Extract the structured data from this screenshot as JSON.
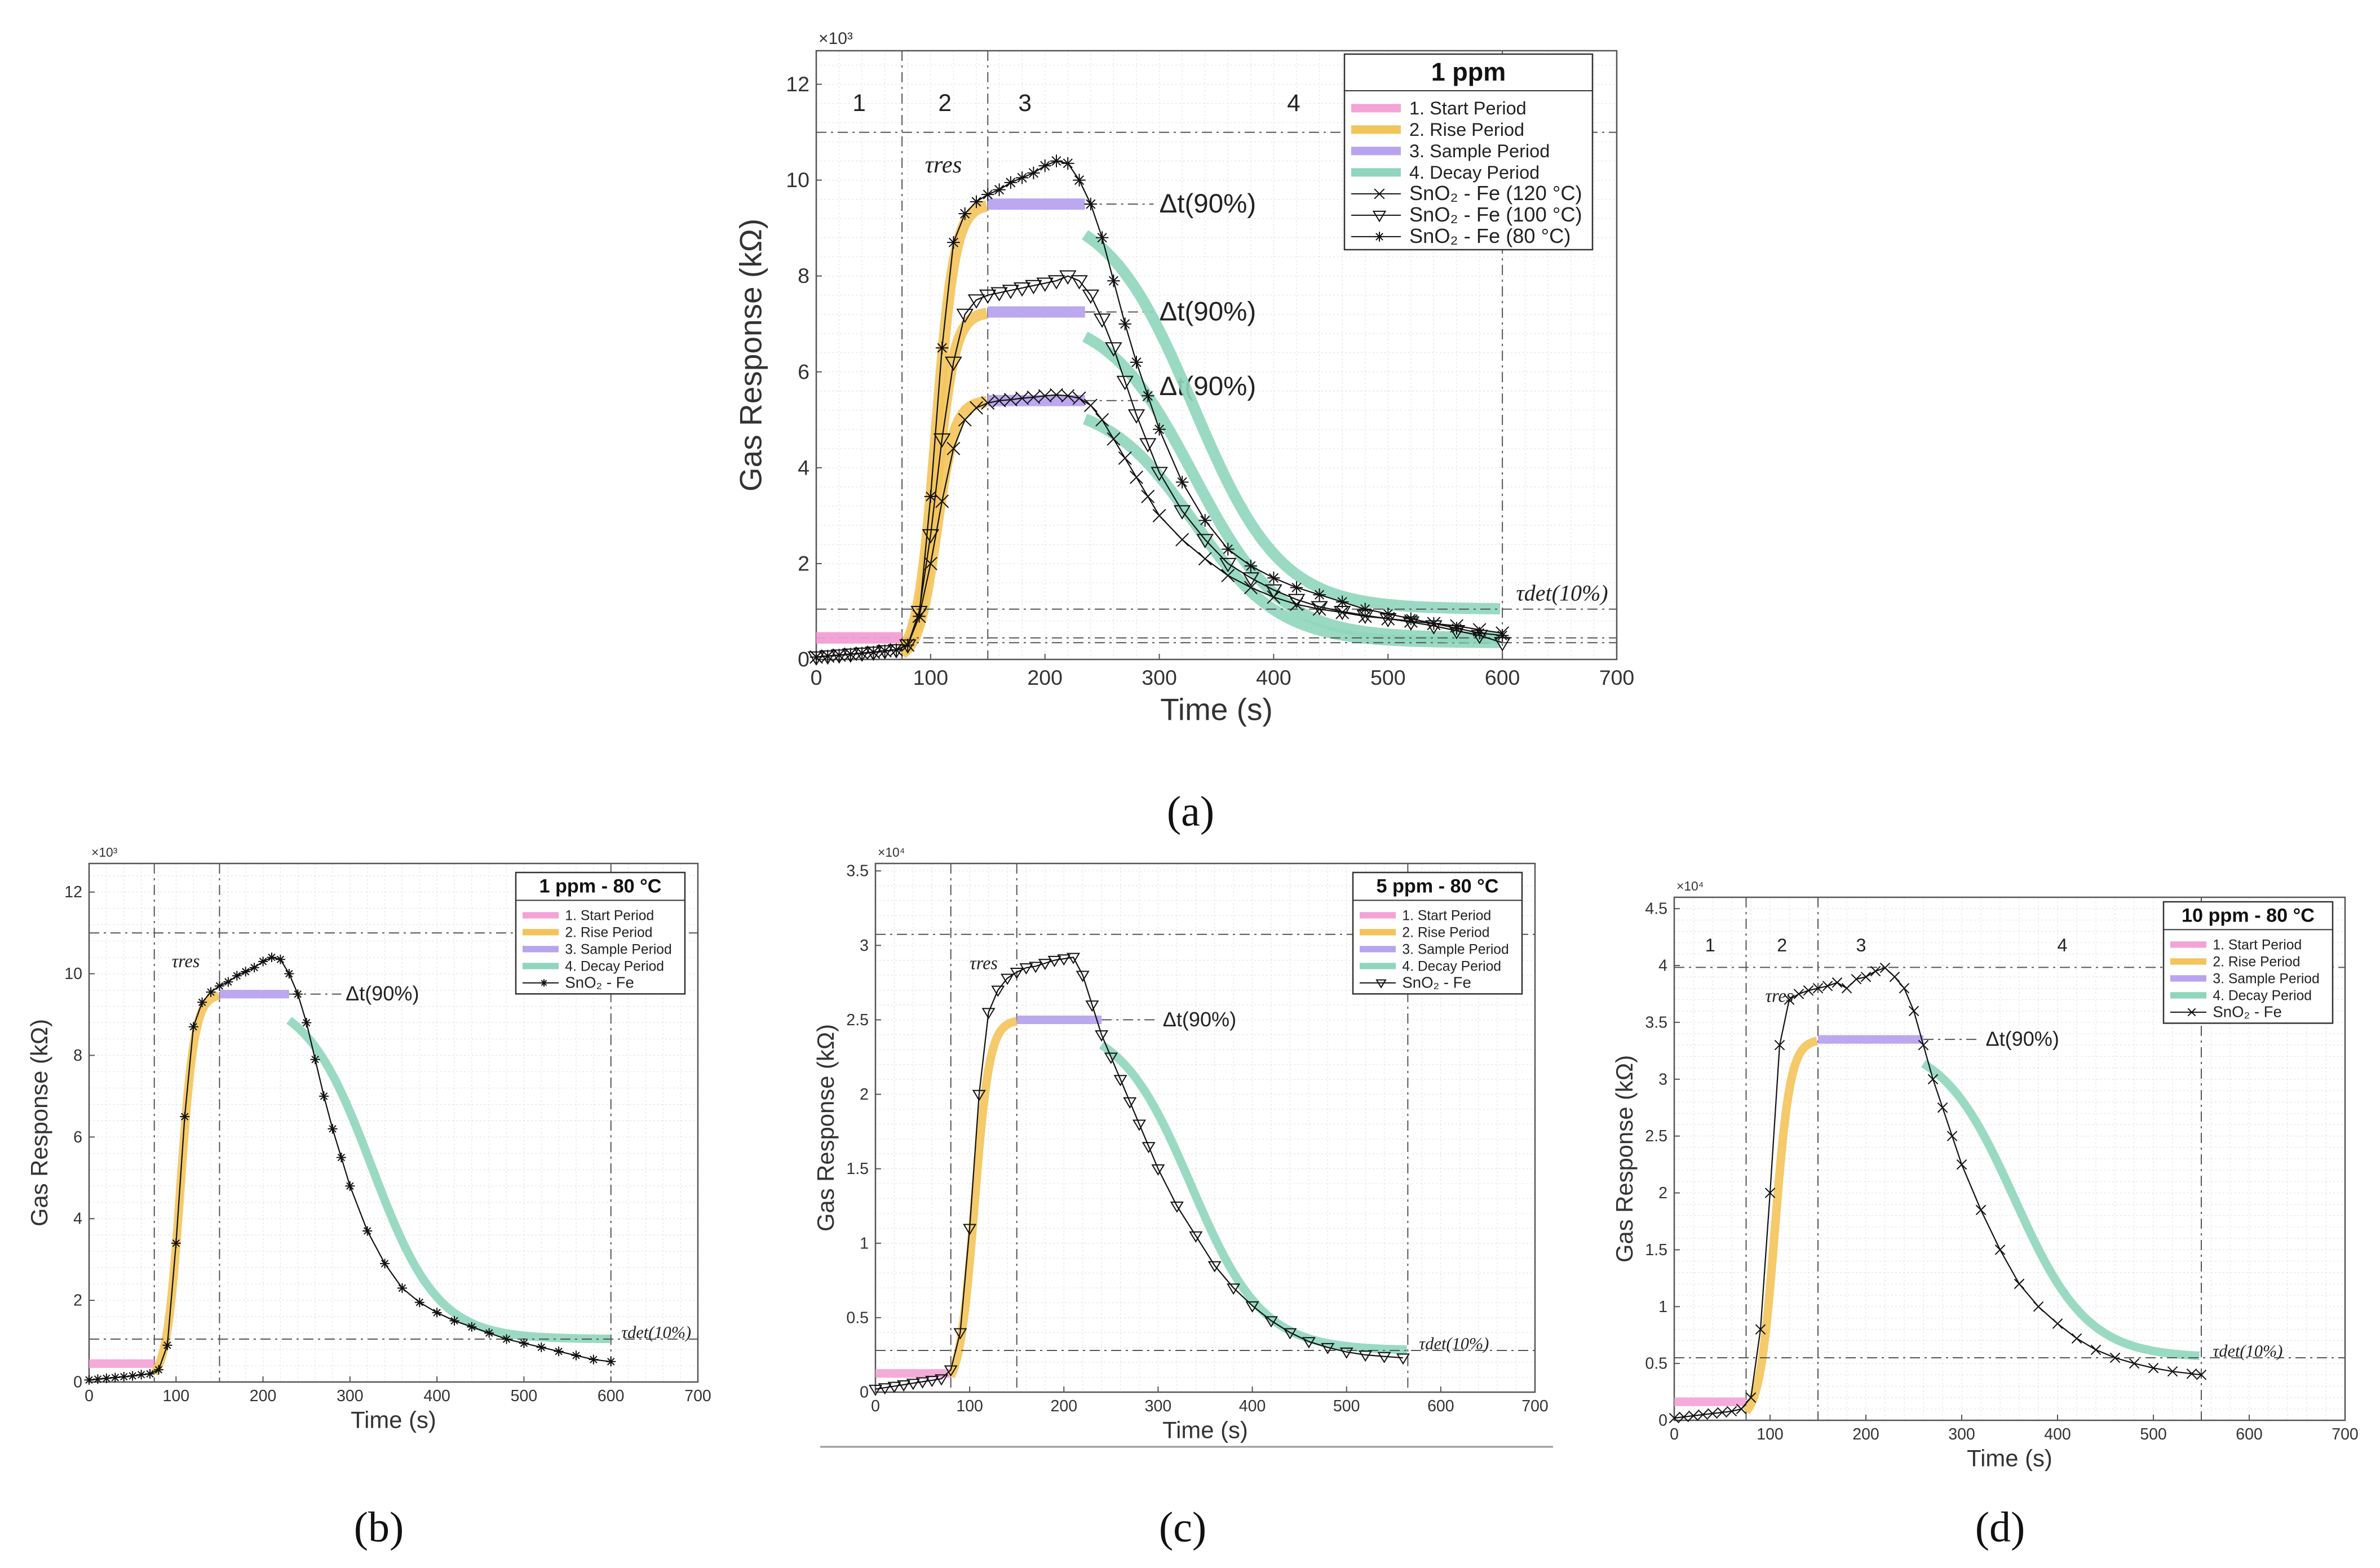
{
  "colors": {
    "start": "#f4a3d6",
    "rise": "#f3c45a",
    "sample": "#b8a4ee",
    "decay": "#8fd6bd",
    "data": "#111111",
    "grid": "#c8c8c8",
    "frame": "#555555"
  },
  "chart_data": [
    {
      "id": "a",
      "caption": "(a)",
      "type": "line",
      "title": "1 ppm",
      "xlabel": "Time (s)",
      "ylabel": "Gas Response (kΩ)",
      "y_exponent": "×10³",
      "xlim": [
        0,
        700
      ],
      "ylim": [
        0,
        12.7
      ],
      "xticks": [
        0,
        100,
        200,
        300,
        400,
        500,
        600,
        700
      ],
      "yticks": [
        0,
        2,
        4,
        6,
        8,
        10,
        12
      ],
      "period_numbers": [
        "1",
        "2",
        "3",
        "4"
      ],
      "legend_entries": [
        "1. Start Period",
        "2. Rise Period",
        "3. Sample Period",
        "4. Decay Period",
        "SnO₂ - Fe (120 °C)",
        "SnO₂ - Fe (100 °C)",
        "SnO₂ - Fe (80 °C)"
      ],
      "annotations": {
        "tau_res": "τres",
        "delta_t": "Δt(90%)",
        "tau_det": "τdet(10%)"
      },
      "series": [
        {
          "name": "SnO₂ - Fe (120 °C)",
          "marker": "x",
          "x": [
            0,
            10,
            20,
            30,
            40,
            50,
            60,
            70,
            80,
            90,
            100,
            110,
            120,
            130,
            140,
            150,
            160,
            170,
            180,
            190,
            200,
            210,
            220,
            230,
            240,
            250,
            260,
            270,
            280,
            290,
            300,
            320,
            340,
            360,
            380,
            400,
            420,
            440,
            460,
            480,
            500,
            520,
            540,
            560,
            580,
            600
          ],
          "y": [
            0.05,
            0.07,
            0.09,
            0.11,
            0.13,
            0.15,
            0.18,
            0.2,
            0.3,
            0.9,
            2.0,
            3.3,
            4.4,
            5.0,
            5.25,
            5.35,
            5.4,
            5.42,
            5.45,
            5.47,
            5.5,
            5.52,
            5.5,
            5.45,
            5.3,
            5.0,
            4.6,
            4.2,
            3.8,
            3.4,
            3.0,
            2.5,
            2.1,
            1.75,
            1.5,
            1.3,
            1.15,
            1.05,
            0.98,
            0.9,
            0.85,
            0.8,
            0.75,
            0.7,
            0.62,
            0.55
          ],
          "fit": {
            "peak": 5.4,
            "end": 0.35
          }
        },
        {
          "name": "SnO₂ - Fe (100 °C)",
          "marker": "tri",
          "x": [
            0,
            10,
            20,
            30,
            40,
            50,
            60,
            70,
            80,
            90,
            100,
            110,
            120,
            130,
            140,
            150,
            160,
            170,
            180,
            190,
            200,
            210,
            220,
            230,
            240,
            250,
            260,
            270,
            280,
            290,
            300,
            320,
            340,
            360,
            380,
            400,
            420,
            440,
            460,
            480,
            500,
            520,
            540,
            560,
            580,
            600
          ],
          "y": [
            0.05,
            0.07,
            0.09,
            0.11,
            0.13,
            0.15,
            0.18,
            0.2,
            0.3,
            1.0,
            2.6,
            4.6,
            6.2,
            7.2,
            7.5,
            7.6,
            7.65,
            7.7,
            7.75,
            7.8,
            7.85,
            7.9,
            8.0,
            7.9,
            7.6,
            7.1,
            6.5,
            5.8,
            5.1,
            4.5,
            3.9,
            3.1,
            2.5,
            2.0,
            1.7,
            1.45,
            1.25,
            1.1,
            1.0,
            0.92,
            0.85,
            0.78,
            0.7,
            0.6,
            0.5,
            0.35
          ],
          "fit": {
            "peak": 7.25,
            "end": 0.45
          }
        },
        {
          "name": "SnO₂ - Fe (80 °C)",
          "marker": "star",
          "x": [
            0,
            10,
            20,
            30,
            40,
            50,
            60,
            70,
            80,
            90,
            100,
            110,
            120,
            130,
            140,
            150,
            160,
            170,
            180,
            190,
            200,
            210,
            220,
            230,
            240,
            250,
            260,
            270,
            280,
            290,
            300,
            320,
            340,
            360,
            380,
            400,
            420,
            440,
            460,
            480,
            500,
            520,
            540,
            560,
            580,
            600
          ],
          "y": [
            0.05,
            0.07,
            0.09,
            0.11,
            0.13,
            0.15,
            0.18,
            0.2,
            0.3,
            0.9,
            3.4,
            6.5,
            8.7,
            9.3,
            9.55,
            9.7,
            9.8,
            9.95,
            10.05,
            10.15,
            10.3,
            10.4,
            10.35,
            10.0,
            9.5,
            8.8,
            7.9,
            7.0,
            6.2,
            5.5,
            4.8,
            3.7,
            2.9,
            2.3,
            1.95,
            1.7,
            1.5,
            1.35,
            1.2,
            1.05,
            0.95,
            0.85,
            0.75,
            0.65,
            0.55,
            0.5
          ],
          "fit": {
            "peak": 9.5,
            "end": 1.05
          }
        }
      ]
    },
    {
      "id": "b",
      "caption": "(b)",
      "type": "line",
      "title": "1 ppm - 80 °C",
      "xlabel": "Time (s)",
      "ylabel": "Gas Response (kΩ)",
      "y_exponent": "×10³",
      "xlim": [
        0,
        700
      ],
      "ylim": [
        0,
        12.7
      ],
      "xticks": [
        0,
        100,
        200,
        300,
        400,
        500,
        600,
        700
      ],
      "yticks": [
        0,
        2,
        4,
        6,
        8,
        10,
        12
      ],
      "legend_entries": [
        "1. Start Period",
        "2. Rise Period",
        "3. Sample Period",
        "4. Decay Period",
        "SnO₂ - Fe"
      ],
      "annotations": {
        "tau_res": "τres",
        "delta_t": "Δt(90%)",
        "tau_det": "τdet(10%)"
      },
      "series": [
        {
          "name": "SnO₂ - Fe",
          "marker": "star",
          "x": [
            0,
            10,
            20,
            30,
            40,
            50,
            60,
            70,
            80,
            90,
            100,
            110,
            120,
            130,
            140,
            150,
            160,
            170,
            180,
            190,
            200,
            210,
            220,
            230,
            240,
            250,
            260,
            270,
            280,
            290,
            300,
            320,
            340,
            360,
            380,
            400,
            420,
            440,
            460,
            480,
            500,
            520,
            540,
            560,
            580,
            600
          ],
          "y": [
            0.05,
            0.07,
            0.09,
            0.11,
            0.13,
            0.15,
            0.18,
            0.2,
            0.3,
            0.9,
            3.4,
            6.5,
            8.7,
            9.3,
            9.55,
            9.7,
            9.8,
            9.95,
            10.05,
            10.15,
            10.3,
            10.4,
            10.35,
            10.0,
            9.5,
            8.8,
            7.9,
            7.0,
            6.2,
            5.5,
            4.8,
            3.7,
            2.9,
            2.3,
            1.95,
            1.7,
            1.5,
            1.35,
            1.2,
            1.05,
            0.95,
            0.85,
            0.75,
            0.65,
            0.55,
            0.5
          ],
          "fit": {
            "peak": 9.5,
            "end": 1.05
          }
        }
      ]
    },
    {
      "id": "c",
      "caption": "(c)",
      "type": "line",
      "title": "5 ppm - 80 °C",
      "xlabel": "Time (s)",
      "ylabel": "Gas Response (kΩ)",
      "y_exponent": "×10⁴",
      "xlim": [
        0,
        700
      ],
      "ylim": [
        0,
        3.55
      ],
      "xticks": [
        0,
        100,
        200,
        300,
        400,
        500,
        600,
        700
      ],
      "yticks": [
        0,
        0.5,
        1,
        1.5,
        2,
        2.5,
        3,
        3.5
      ],
      "legend_entries": [
        "1. Start Period",
        "2. Rise Period",
        "3. Sample Period",
        "4. Decay Period",
        "SnO₂ - Fe"
      ],
      "annotations": {
        "tau_res": "τres",
        "delta_t": "Δt(90%)",
        "tau_det": "τdet(10%)"
      },
      "series": [
        {
          "name": "SnO₂ - Fe",
          "marker": "tri",
          "x": [
            0,
            10,
            20,
            30,
            40,
            50,
            60,
            70,
            80,
            90,
            100,
            110,
            120,
            130,
            140,
            150,
            160,
            170,
            180,
            190,
            200,
            210,
            220,
            230,
            240,
            250,
            260,
            270,
            280,
            290,
            300,
            320,
            340,
            360,
            380,
            400,
            420,
            440,
            460,
            480,
            500,
            520,
            540,
            560
          ],
          "y": [
            0.02,
            0.03,
            0.04,
            0.05,
            0.06,
            0.07,
            0.08,
            0.09,
            0.15,
            0.4,
            1.1,
            2.0,
            2.55,
            2.7,
            2.78,
            2.82,
            2.85,
            2.86,
            2.88,
            2.9,
            2.91,
            2.92,
            2.8,
            2.6,
            2.4,
            2.25,
            2.1,
            1.95,
            1.8,
            1.65,
            1.5,
            1.25,
            1.05,
            0.85,
            0.7,
            0.58,
            0.48,
            0.4,
            0.34,
            0.3,
            0.27,
            0.25,
            0.24,
            0.23
          ],
          "fit": {
            "peak": 2.5,
            "end": 0.28
          }
        }
      ]
    },
    {
      "id": "d",
      "caption": "(d)",
      "type": "line",
      "title": "10 ppm - 80 °C",
      "xlabel": "Time (s)",
      "ylabel": "Gas Response (kΩ)",
      "y_exponent": "×10⁴",
      "xlim": [
        0,
        700
      ],
      "ylim": [
        0,
        4.6
      ],
      "xticks": [
        0,
        100,
        200,
        300,
        400,
        500,
        600,
        700
      ],
      "yticks": [
        0,
        0.5,
        1,
        1.5,
        2,
        2.5,
        3,
        3.5,
        4,
        4.5
      ],
      "period_numbers": [
        "1",
        "2",
        "3",
        "4"
      ],
      "legend_entries": [
        "1. Start Period",
        "2. Rise Period",
        "3. Sample Period",
        "4. Decay Period",
        "SnO₂ - Fe"
      ],
      "annotations": {
        "tau_res": "τres",
        "delta_t": "Δt(90%)",
        "tau_det": "τdet(10%)"
      },
      "series": [
        {
          "name": "SnO₂ - Fe",
          "marker": "x",
          "x": [
            0,
            10,
            20,
            30,
            40,
            50,
            60,
            70,
            80,
            90,
            100,
            110,
            120,
            130,
            140,
            150,
            160,
            170,
            180,
            190,
            200,
            210,
            220,
            230,
            240,
            250,
            260,
            270,
            280,
            290,
            300,
            320,
            340,
            360,
            380,
            400,
            420,
            440,
            460,
            480,
            500,
            520,
            540,
            550
          ],
          "y": [
            0.02,
            0.03,
            0.04,
            0.05,
            0.06,
            0.07,
            0.08,
            0.1,
            0.2,
            0.8,
            2.0,
            3.3,
            3.7,
            3.75,
            3.78,
            3.8,
            3.82,
            3.85,
            3.8,
            3.88,
            3.9,
            3.95,
            3.98,
            3.9,
            3.8,
            3.6,
            3.3,
            3.0,
            2.75,
            2.5,
            2.25,
            1.85,
            1.5,
            1.2,
            1.0,
            0.85,
            0.72,
            0.62,
            0.55,
            0.5,
            0.46,
            0.43,
            0.41,
            0.4
          ],
          "fit": {
            "peak": 3.35,
            "end": 0.55
          }
        }
      ]
    }
  ]
}
